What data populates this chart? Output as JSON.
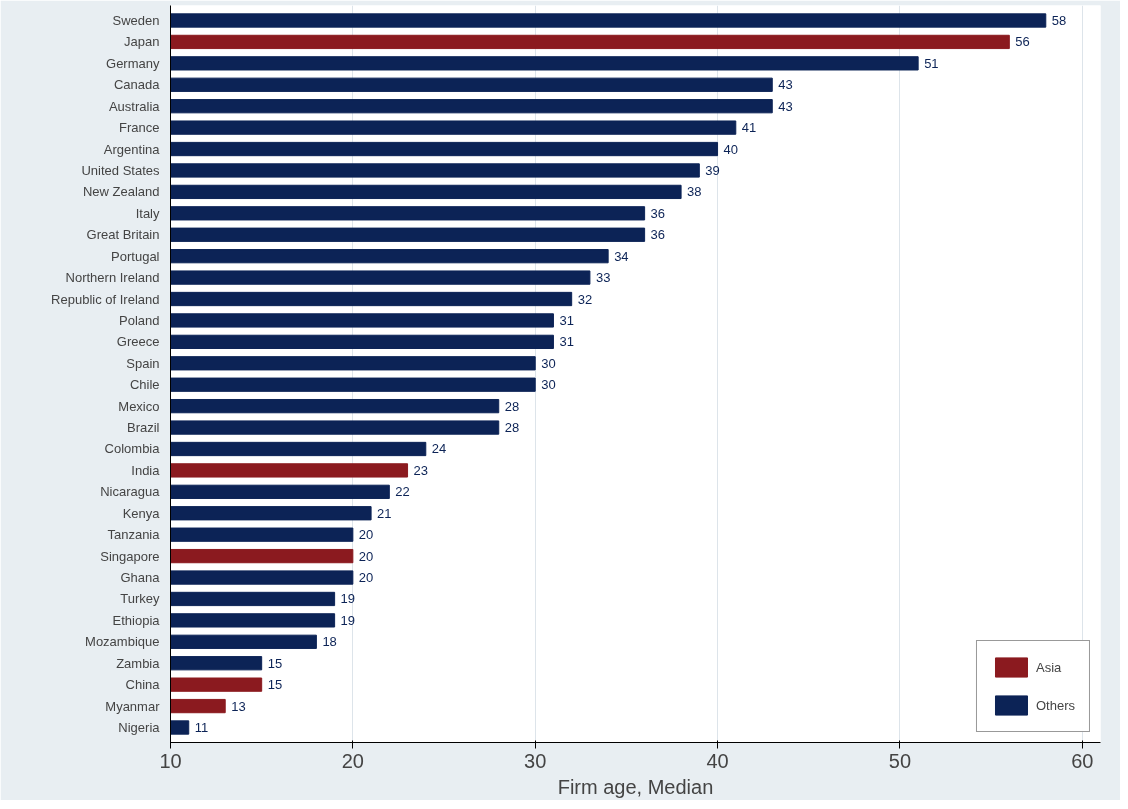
{
  "chart_data": {
    "type": "bar",
    "orientation": "horizontal",
    "xlabel": "Firm age, Median",
    "categories": [
      "Sweden",
      "Japan",
      "Germany",
      "Canada",
      "Australia",
      "France",
      "Argentina",
      "United States",
      "New Zealand",
      "Italy",
      "Great Britain",
      "Portugal",
      "Northern Ireland",
      "Republic of Ireland",
      "Poland",
      "Greece",
      "Spain",
      "Chile",
      "Mexico",
      "Brazil",
      "Colombia",
      "India",
      "Nicaragua",
      "Kenya",
      "Tanzania",
      "Singapore",
      "Ghana",
      "Turkey",
      "Ethiopia",
      "Mozambique",
      "Zambia",
      "China",
      "Myanmar",
      "Nigeria"
    ],
    "series": [
      {
        "name": "Asia",
        "color": "#8b1a1f",
        "values": [
          null,
          56,
          null,
          null,
          null,
          null,
          null,
          null,
          null,
          null,
          null,
          null,
          null,
          null,
          null,
          null,
          null,
          null,
          null,
          null,
          null,
          23,
          null,
          null,
          null,
          20,
          null,
          null,
          null,
          null,
          null,
          15,
          13,
          null
        ]
      },
      {
        "name": "Others",
        "color": "#0c2356",
        "values": [
          58,
          null,
          51,
          43,
          43,
          41,
          40,
          39,
          38,
          36,
          36,
          34,
          33,
          32,
          31,
          31,
          30,
          30,
          28,
          28,
          24,
          null,
          22,
          21,
          20,
          null,
          20,
          19,
          19,
          18,
          15,
          null,
          null,
          11
        ]
      }
    ],
    "xlim": [
      10,
      61
    ],
    "xticks": [
      10,
      20,
      30,
      40,
      50,
      60
    ],
    "grid": "x",
    "legend": "bottom right",
    "data_labels": true
  }
}
